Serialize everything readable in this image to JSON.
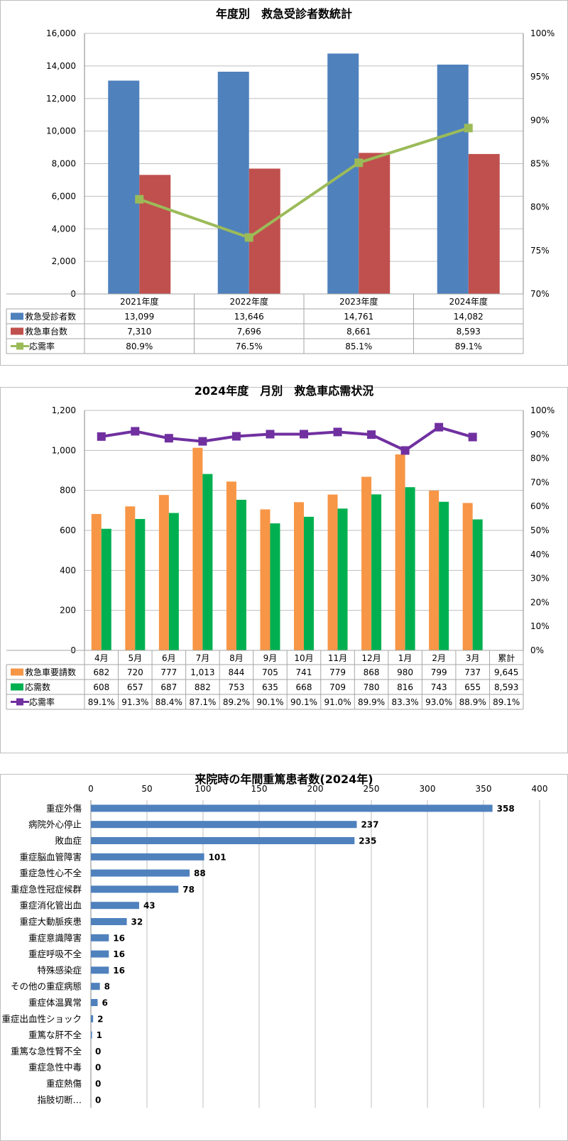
{
  "chart_data": [
    {
      "type": "bar",
      "title": "年度別　救急受診者数統計",
      "categories": [
        "2021年度",
        "2022年度",
        "2023年度",
        "2024年度"
      ],
      "series": [
        {
          "name": "救急受診者数",
          "type": "bar",
          "axis": "left",
          "color": "#4F81BD",
          "values": [
            13099,
            13646,
            14761,
            14082
          ],
          "labels": [
            "13,099",
            "13,646",
            "14,761",
            "14,082"
          ]
        },
        {
          "name": "救急車台数",
          "type": "bar",
          "axis": "left",
          "color": "#C0504D",
          "values": [
            7310,
            7696,
            8661,
            8593
          ],
          "labels": [
            "7,310",
            "7,696",
            "8,661",
            "8,593"
          ]
        },
        {
          "name": "応需率",
          "type": "line",
          "axis": "right",
          "color": "#9BBB59",
          "values": [
            80.9,
            76.5,
            85.1,
            89.1
          ],
          "labels": [
            "80.9%",
            "76.5%",
            "85.1%",
            "89.1%"
          ]
        }
      ],
      "ylim": [
        0,
        16000
      ],
      "y_ticks": [
        "0",
        "2,000",
        "4,000",
        "6,000",
        "8,000",
        "10,000",
        "12,000",
        "14,000",
        "16,000"
      ],
      "y2lim": [
        70,
        100
      ],
      "y2_ticks": [
        "70%",
        "75%",
        "80%",
        "85%",
        "90%",
        "95%",
        "100%"
      ],
      "grid": true,
      "legend": "data-table"
    },
    {
      "type": "bar",
      "title": "2024年度　月別　救急車応需状況",
      "categories": [
        "4月",
        "5月",
        "6月",
        "7月",
        "8月",
        "9月",
        "10月",
        "11月",
        "12月",
        "1月",
        "2月",
        "3月"
      ],
      "total_label": "累計",
      "series": [
        {
          "name": "救急車要請数",
          "type": "bar",
          "axis": "left",
          "color": "#F79646",
          "values": [
            682,
            720,
            777,
            1013,
            844,
            705,
            741,
            779,
            868,
            980,
            799,
            737
          ],
          "labels": [
            "682",
            "720",
            "777",
            "1,013",
            "844",
            "705",
            "741",
            "779",
            "868",
            "980",
            "799",
            "737"
          ],
          "total": "9,645"
        },
        {
          "name": "応需数",
          "type": "bar",
          "axis": "left",
          "color": "#00B050",
          "values": [
            608,
            657,
            687,
            882,
            753,
            635,
            668,
            709,
            780,
            816,
            743,
            655
          ],
          "labels": [
            "608",
            "657",
            "687",
            "882",
            "753",
            "635",
            "668",
            "709",
            "780",
            "816",
            "743",
            "655"
          ],
          "total": "8,593"
        },
        {
          "name": "応需率",
          "type": "line",
          "axis": "right",
          "color": "#7030A0",
          "values": [
            89.1,
            91.3,
            88.4,
            87.1,
            89.2,
            90.1,
            90.1,
            91.0,
            89.9,
            83.3,
            93.0,
            88.9
          ],
          "labels": [
            "89.1%",
            "91.3%",
            "88.4%",
            "87.1%",
            "89.2%",
            "90.1%",
            "90.1%",
            "91.0%",
            "89.9%",
            "83.3%",
            "93.0%",
            "88.9%"
          ],
          "total": "89.1%"
        }
      ],
      "ylim": [
        0,
        1200
      ],
      "y_ticks": [
        "0",
        "200",
        "400",
        "600",
        "800",
        "1,000",
        "1,200"
      ],
      "y2lim": [
        0,
        100
      ],
      "y2_ticks": [
        "0%",
        "10%",
        "20%",
        "30%",
        "40%",
        "50%",
        "60%",
        "70%",
        "80%",
        "90%",
        "100%"
      ],
      "grid": true,
      "legend": "data-table"
    },
    {
      "type": "bar",
      "orientation": "horizontal",
      "title": "来院時の年間重篤患者数(2024年)",
      "categories": [
        "重症外傷",
        "病院外心停止",
        "敗血症",
        "重症脳血管障害",
        "重症急性心不全",
        "重症急性冠症候群",
        "重症消化管出血",
        "重症大動脈疾患",
        "重症意識障害",
        "重症呼吸不全",
        "特殊感染症",
        "その他の重症病態",
        "重症体温異常",
        "重症出血性ショック",
        "重篤な肝不全",
        "重篤な急性腎不全",
        "重症急性中毒",
        "重症熱傷",
        "指肢切断…"
      ],
      "values": [
        358,
        237,
        235,
        101,
        88,
        78,
        43,
        32,
        16,
        16,
        16,
        8,
        6,
        2,
        1,
        0,
        0,
        0,
        0
      ],
      "labels": [
        "358",
        "237",
        "235",
        "101",
        "88",
        "78",
        "43",
        "32",
        "16",
        "16",
        "16",
        "8",
        "6",
        "2",
        "1",
        "0",
        "0",
        "0",
        "0"
      ],
      "color": "#4F81BD",
      "xlim": [
        0,
        400
      ],
      "x_ticks": [
        "0",
        "50",
        "100",
        "150",
        "200",
        "250",
        "300",
        "350",
        "400"
      ],
      "grid": true
    }
  ]
}
